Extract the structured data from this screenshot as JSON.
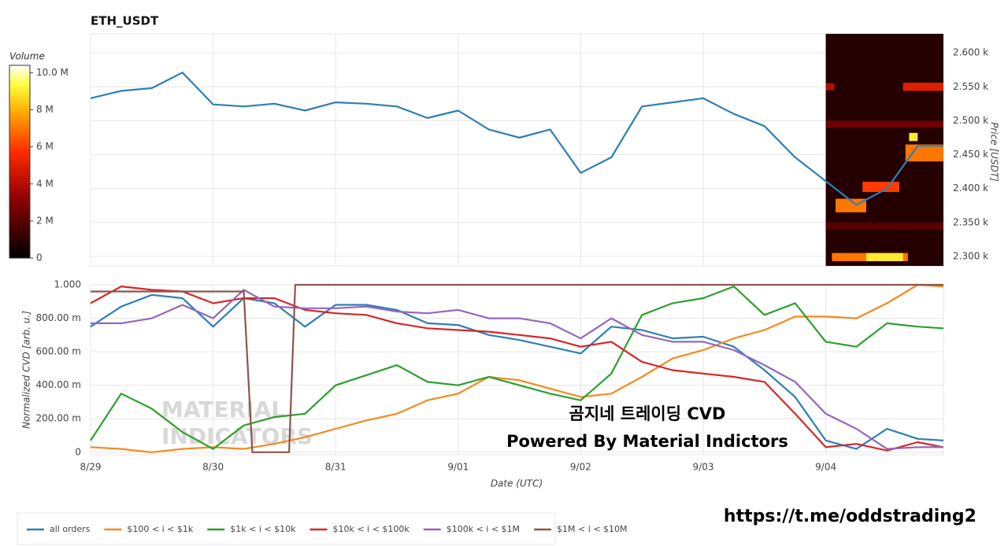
{
  "chart_data": [
    {
      "type": "line",
      "title": "ETH_USDT",
      "y_label": "Price [USDT]",
      "xlim": [
        0,
        6.96
      ],
      "xticks": [
        0,
        1,
        2,
        3,
        4,
        5,
        6
      ],
      "ylim": [
        2286,
        2628
      ],
      "yticks": [
        {
          "value": 2300,
          "label": "2.300 k"
        },
        {
          "value": 2350,
          "label": "2.350 k"
        },
        {
          "value": 2400,
          "label": "2.400 k"
        },
        {
          "value": 2450,
          "label": "2.450 k"
        },
        {
          "value": 2500,
          "label": "2.500 k"
        },
        {
          "value": 2550,
          "label": "2.550 k"
        },
        {
          "value": 2600,
          "label": "2.600 k"
        }
      ],
      "grid": true,
      "x": [
        0,
        0.25,
        0.5,
        0.75,
        1,
        1.25,
        1.5,
        1.75,
        2,
        2.25,
        2.5,
        2.75,
        3,
        3.25,
        3.5,
        3.75,
        4,
        4.25,
        4.5,
        4.75,
        5,
        5.25,
        5.5,
        5.75,
        6,
        6.25,
        6.5,
        6.75,
        6.96
      ],
      "series": [
        {
          "color": "#2e7fb5",
          "values": [
            2533,
            2544,
            2548,
            2571,
            2524,
            2521,
            2525,
            2515,
            2527,
            2525,
            2521,
            2504,
            2515,
            2487,
            2475,
            2487,
            2423,
            2446,
            2521,
            2527,
            2533,
            2510,
            2492,
            2446,
            2411,
            2376,
            2400,
            2463,
            2463
          ]
        }
      ],
      "colorbar": {
        "label": "Volume",
        "clim": [
          0,
          10400000
        ],
        "ticks": [
          0,
          {
            "value": 2000000,
            "label": "2 M"
          },
          {
            "value": 4000000,
            "label": "4 M"
          },
          {
            "value": 6000000,
            "label": "6 M"
          },
          {
            "value": 8000000,
            "label": "8 M"
          },
          {
            "value": 10000000,
            "label": "10.0 M"
          }
        ]
      },
      "heatmap": {
        "cells": [
          {
            "x": [
              6.0,
              6.96
            ],
            "y": [
              2286,
              2628
            ],
            "volume": 800000
          },
          {
            "x": [
              6.0,
              6.96
            ],
            "y": [
              2490,
              2500
            ],
            "volume": 2500000
          },
          {
            "x": [
              6.0,
              6.96
            ],
            "y": [
              2340,
              2350
            ],
            "volume": 2000000
          },
          {
            "x": [
              6.0,
              6.07
            ],
            "y": [
              2545,
              2555
            ],
            "volume": 4000000
          },
          {
            "x": [
              6.63,
              6.96
            ],
            "y": [
              2544,
              2556
            ],
            "volume": 5000000
          },
          {
            "x": [
              6.05,
              6.67
            ],
            "y": [
              2293,
              2305
            ],
            "volume": 7000000
          },
          {
            "x": [
              6.33,
              6.63
            ],
            "y": [
              2293,
              2305
            ],
            "volume": 9000000
          },
          {
            "x": [
              6.08,
              6.33
            ],
            "y": [
              2365,
              2385
            ],
            "volume": 7000000
          },
          {
            "x": [
              6.3,
              6.6
            ],
            "y": [
              2395,
              2410
            ],
            "volume": 6000000
          },
          {
            "x": [
              6.65,
              6.96
            ],
            "y": [
              2440,
              2465
            ],
            "volume": 7000000
          },
          {
            "x": [
              6.68,
              6.75
            ],
            "y": [
              2470,
              2482
            ],
            "volume": 9000000
          }
        ]
      }
    },
    {
      "type": "line",
      "x_label": "Date (UTC)",
      "y_label": "Normalized CVD [arb. u.]",
      "xlim": [
        0,
        6.96
      ],
      "xticks": [
        {
          "value": 0,
          "label": "8/29"
        },
        {
          "value": 1,
          "label": "8/30"
        },
        {
          "value": 2,
          "label": "8/31"
        },
        {
          "value": 3,
          "label": "9/01"
        },
        {
          "value": 4,
          "label": "9/02"
        },
        {
          "value": 5,
          "label": "9/03"
        },
        {
          "value": 6,
          "label": "9/04"
        }
      ],
      "ylim": [
        -0.015,
        1.0
      ],
      "yticks": [
        0,
        {
          "value": 0.2,
          "label": "200.00 m"
        },
        {
          "value": 0.4,
          "label": "400.00 m"
        },
        {
          "value": 0.6,
          "label": "600.00 m"
        },
        {
          "value": 0.8,
          "label": "800.00 m"
        },
        {
          "value": 1,
          "label": "1.000"
        }
      ],
      "grid": true,
      "legend": "bottom",
      "x": [
        0,
        0.25,
        0.5,
        0.75,
        1,
        1.25,
        1.5,
        1.75,
        2,
        2.25,
        2.5,
        2.75,
        3,
        3.25,
        3.5,
        3.75,
        4,
        4.25,
        4.5,
        4.75,
        5,
        5.25,
        5.5,
        5.75,
        6,
        6.25,
        6.5,
        6.75,
        6.96
      ],
      "series": [
        {
          "name": "all orders",
          "color": "#2e7fb5",
          "values": [
            0.75,
            0.87,
            0.94,
            0.92,
            0.75,
            0.92,
            0.89,
            0.75,
            0.88,
            0.88,
            0.85,
            0.77,
            0.76,
            0.7,
            0.67,
            0.63,
            0.59,
            0.75,
            0.73,
            0.68,
            0.69,
            0.63,
            0.49,
            0.33,
            0.07,
            0.02,
            0.14,
            0.08,
            0.07
          ]
        },
        {
          "name": "$100 < i < $1k",
          "color": "#f5891f",
          "values": [
            0.03,
            0.02,
            0,
            0.02,
            0.03,
            0.02,
            0.05,
            0.09,
            0.14,
            0.19,
            0.23,
            0.31,
            0.35,
            0.45,
            0.43,
            0.38,
            0.33,
            0.35,
            0.45,
            0.56,
            0.61,
            0.68,
            0.73,
            0.81,
            0.81,
            0.8,
            0.89,
            1.0,
            0.99
          ]
        },
        {
          "name": "$1k < i < $10k",
          "color": "#2ca02c",
          "values": [
            0.07,
            0.35,
            0.26,
            0.12,
            0.02,
            0.16,
            0.21,
            0.23,
            0.4,
            0.46,
            0.52,
            0.42,
            0.4,
            0.45,
            0.4,
            0.35,
            0.31,
            0.47,
            0.82,
            0.89,
            0.92,
            0.99,
            0.82,
            0.89,
            0.66,
            0.63,
            0.77,
            0.75,
            0.74
          ]
        },
        {
          "name": "$10k < i < $100k",
          "color": "#d62728",
          "values": [
            0.89,
            0.99,
            0.97,
            0.96,
            0.89,
            0.92,
            0.92,
            0.85,
            0.83,
            0.82,
            0.77,
            0.74,
            0.73,
            0.72,
            0.7,
            0.68,
            0.63,
            0.66,
            0.54,
            0.49,
            0.47,
            0.45,
            0.42,
            0.23,
            0.03,
            0.05,
            0.01,
            0.06,
            0.03
          ]
        },
        {
          "name": "$100k < i < $1M",
          "color": "#9467bd",
          "values": [
            0.77,
            0.77,
            0.8,
            0.88,
            0.8,
            0.97,
            0.87,
            0.86,
            0.86,
            0.87,
            0.84,
            0.83,
            0.85,
            0.8,
            0.8,
            0.77,
            0.68,
            0.8,
            0.7,
            0.66,
            0.66,
            0.61,
            0.52,
            0.42,
            0.23,
            0.14,
            0.02,
            0.03,
            0.03
          ]
        },
        {
          "name": "$1M < i < $10M",
          "color": "#8c564b",
          "x": [
            0,
            1.25,
            1.32,
            1.62,
            1.67,
            6.96
          ],
          "values": [
            0.96,
            0.96,
            0,
            0,
            1,
            1
          ]
        }
      ]
    }
  ],
  "watermark": [
    "MATERIAL",
    "INDICATORS"
  ],
  "overlay": [
    "곰지네 트레이딩 CVD",
    "Powered By Material Indictors"
  ],
  "link": "https://t.me/oddstrading2"
}
